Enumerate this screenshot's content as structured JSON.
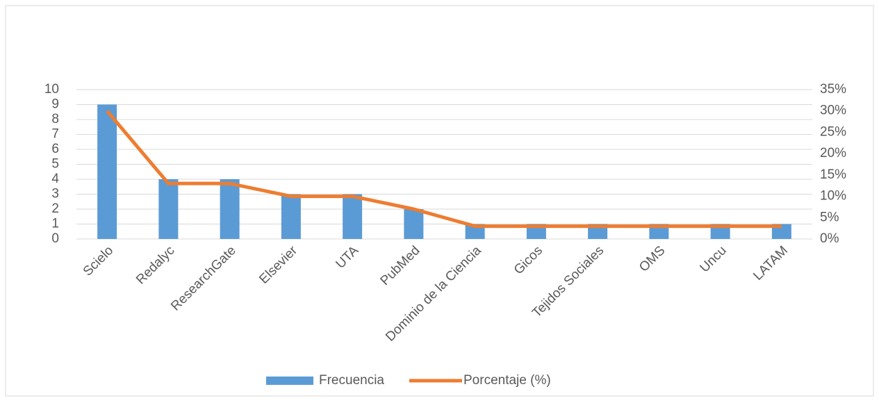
{
  "chart_data": {
    "type": "bar-line",
    "categories": [
      "Scielo",
      "Redalyc",
      "ResearchGate",
      "Elsevier",
      "UTA",
      "PubMed",
      "Dominio de la Ciencia",
      "Gicos",
      "Tejidos Sociales",
      "OMS",
      "Uncu",
      "LATAM"
    ],
    "series": [
      {
        "name": "Frecuencia",
        "type": "bar",
        "color": "#5b9bd5",
        "values": [
          9,
          4,
          4,
          3,
          3,
          2,
          1,
          1,
          1,
          1,
          1,
          1
        ]
      },
      {
        "name": "Porcentaje (%)",
        "type": "line",
        "axis": "y2",
        "color": "#ed7d31",
        "values": [
          30,
          13,
          13,
          10,
          10,
          7,
          3,
          3,
          3,
          3,
          3,
          3
        ]
      }
    ],
    "ylim": [
      0,
      10
    ],
    "yticks": [
      0,
      1,
      2,
      3,
      4,
      5,
      6,
      7,
      8,
      9,
      10
    ],
    "y2lim": [
      0,
      35
    ],
    "y2ticks": [
      {
        "value": 0,
        "label": "0%"
      },
      {
        "value": 5,
        "label": "5%"
      },
      {
        "value": 10,
        "label": "10%"
      },
      {
        "value": 15,
        "label": "15%"
      },
      {
        "value": 20,
        "label": "20%"
      },
      {
        "value": 25,
        "label": "25%"
      },
      {
        "value": 30,
        "label": "30%"
      },
      {
        "value": 35,
        "label": "35%"
      }
    ],
    "grid": true,
    "legend": "bottom"
  }
}
